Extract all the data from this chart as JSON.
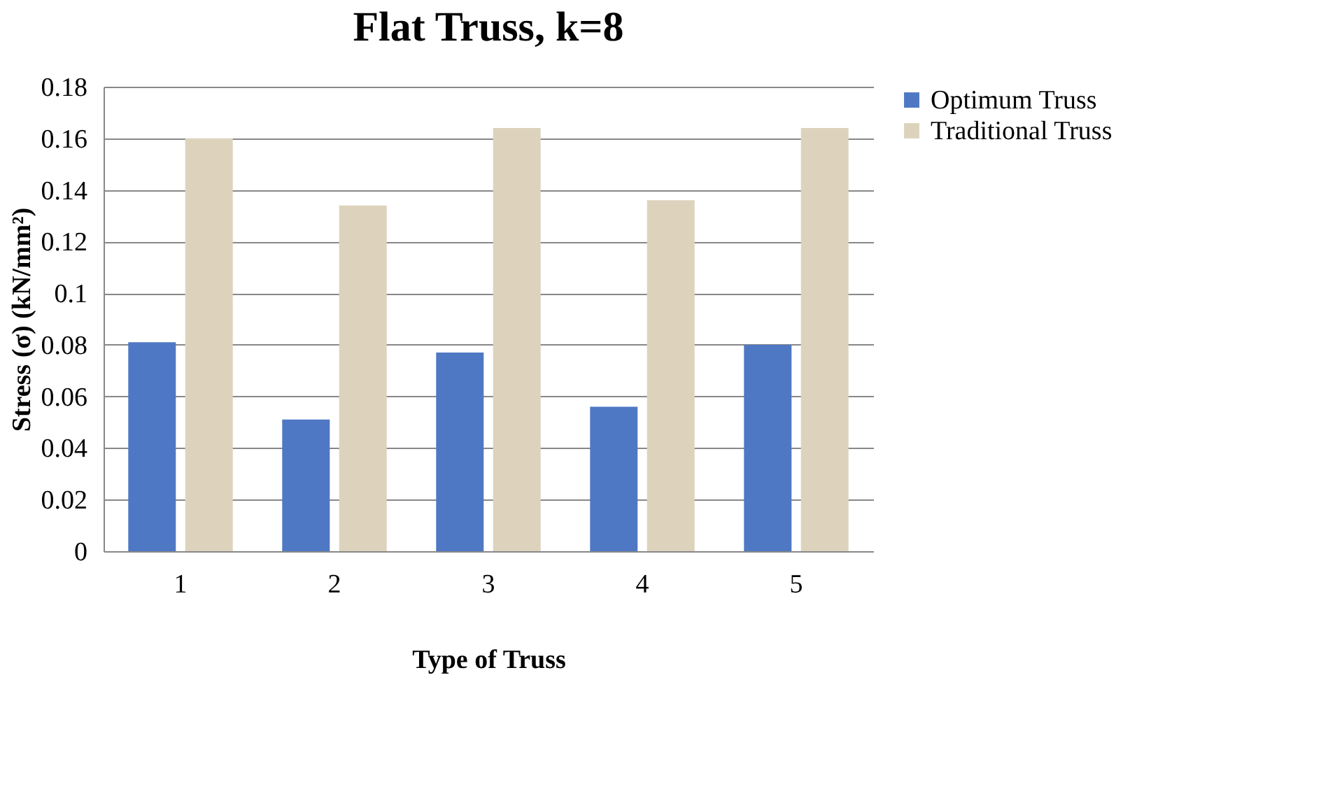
{
  "chart_data": {
    "type": "bar",
    "title": "Flat Truss, k=8",
    "xlabel": "Type of Truss",
    "ylabel": "Stress (σ) (kN/mm²)",
    "categories": [
      "1",
      "2",
      "3",
      "4",
      "5"
    ],
    "series": [
      {
        "name": "Optimum Truss",
        "color": "#4f78c4",
        "values": [
          0.081,
          0.051,
          0.077,
          0.056,
          0.08
        ]
      },
      {
        "name": "Traditional Truss",
        "color": "#ddd3bd",
        "values": [
          0.16,
          0.134,
          0.164,
          0.136,
          0.164
        ]
      }
    ],
    "ylim": [
      0,
      0.18
    ],
    "yticks": [
      0,
      0.02,
      0.04,
      0.06,
      0.08,
      0.1,
      0.12,
      0.14,
      0.16,
      0.18
    ],
    "grid": "y",
    "legend": "right"
  }
}
